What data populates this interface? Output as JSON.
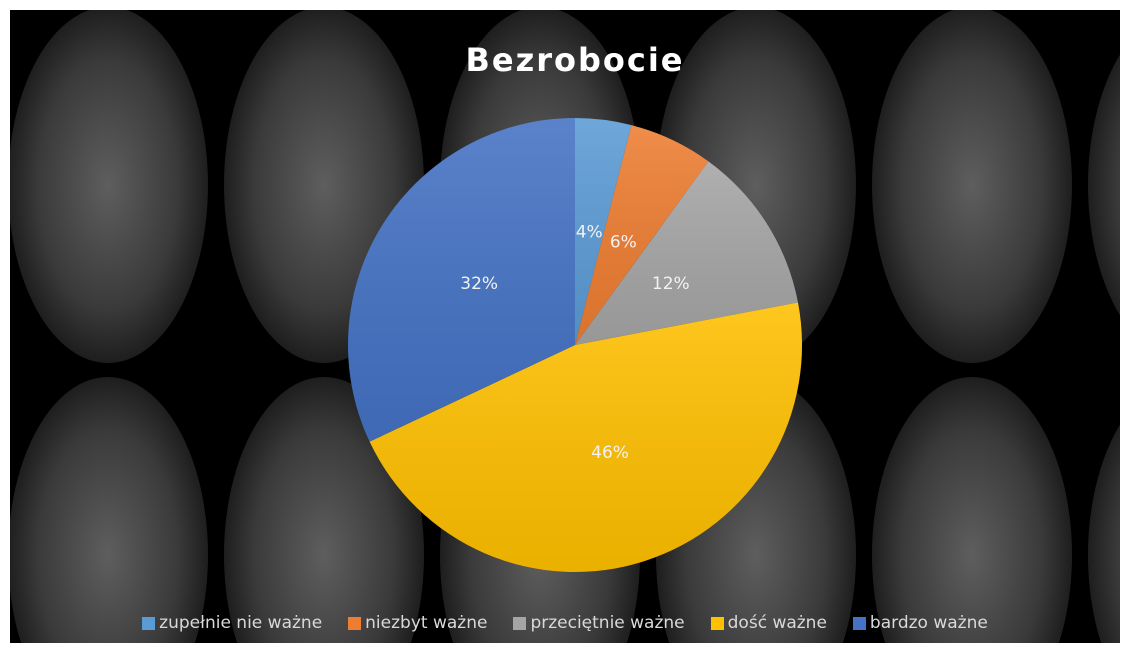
{
  "chart_data": {
    "type": "pie",
    "title": "Bezrobocie",
    "categories": [
      "zupełnie nie ważne",
      "niezbyt ważne",
      "przeciętnie ważne",
      "dość ważne",
      "bardzo ważne"
    ],
    "values": [
      4,
      6,
      12,
      46,
      32
    ],
    "value_labels": [
      "4%",
      "6%",
      "12%",
      "46%",
      "32%"
    ],
    "colors": [
      "#5b9bd5",
      "#ed7d31",
      "#a5a5a5",
      "#ffc000",
      "#4472c4"
    ],
    "legend": "bottom"
  }
}
